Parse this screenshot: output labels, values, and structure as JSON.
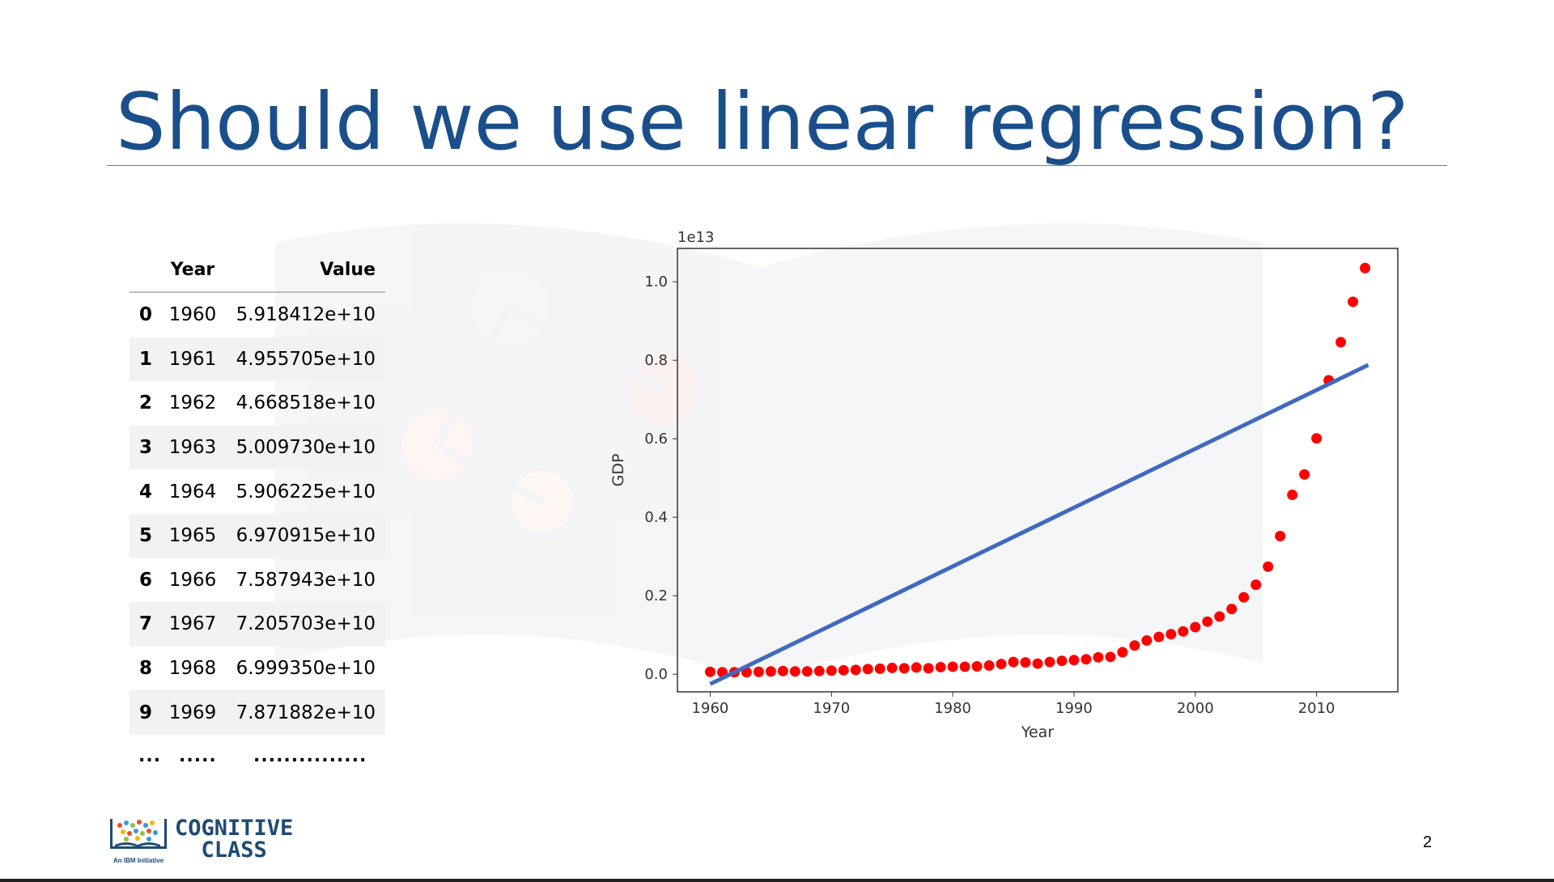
{
  "slide": {
    "title": "Should we use linear regression?",
    "page_number": "2"
  },
  "table": {
    "columns": [
      "",
      "Year",
      "Value"
    ],
    "rows": [
      {
        "index": "0",
        "year": "1960",
        "value": "5.918412e+10"
      },
      {
        "index": "1",
        "year": "1961",
        "value": "4.955705e+10"
      },
      {
        "index": "2",
        "year": "1962",
        "value": "4.668518e+10"
      },
      {
        "index": "3",
        "year": "1963",
        "value": "5.009730e+10"
      },
      {
        "index": "4",
        "year": "1964",
        "value": "5.906225e+10"
      },
      {
        "index": "5",
        "year": "1965",
        "value": "6.970915e+10"
      },
      {
        "index": "6",
        "year": "1966",
        "value": "7.587943e+10"
      },
      {
        "index": "7",
        "year": "1967",
        "value": "7.205703e+10"
      },
      {
        "index": "8",
        "year": "1968",
        "value": "6.999350e+10"
      },
      {
        "index": "9",
        "year": "1969",
        "value": "7.871882e+10"
      }
    ],
    "ellipsis": [
      "...",
      ".....",
      "..............."
    ]
  },
  "logo": {
    "line1": "COGNITIVE",
    "line2": "CLASS",
    "tagline": "An IBM Initiative"
  },
  "chart_data": {
    "type": "scatter",
    "xlabel": "Year",
    "ylabel": "GDP",
    "offset_label": "1e13",
    "xlim": [
      1957.3,
      2016.7
    ],
    "ylim": [
      -0.045,
      1.085
    ],
    "xticks": [
      1960,
      1970,
      1980,
      1990,
      2000,
      2010
    ],
    "yticks": [
      0.0,
      0.2,
      0.4,
      0.6,
      0.8,
      1.0
    ],
    "ytick_labels": [
      "0.0",
      "0.2",
      "0.4",
      "0.6",
      "0.8",
      "1.0"
    ],
    "grid": false,
    "colors": {
      "points": "#ff0000",
      "line": "#4169c0"
    },
    "series": [
      {
        "kind": "scatter",
        "x": [
          1960,
          1961,
          1962,
          1963,
          1964,
          1965,
          1966,
          1967,
          1968,
          1969,
          1970,
          1971,
          1972,
          1973,
          1974,
          1975,
          1976,
          1977,
          1978,
          1979,
          1980,
          1981,
          1982,
          1983,
          1984,
          1985,
          1986,
          1987,
          1988,
          1989,
          1990,
          1991,
          1992,
          1993,
          1994,
          1995,
          1996,
          1997,
          1998,
          1999,
          2000,
          2001,
          2002,
          2003,
          2004,
          2005,
          2006,
          2007,
          2008,
          2009,
          2010,
          2011,
          2012,
          2013,
          2014
        ],
        "y": [
          0.006,
          0.005,
          0.005,
          0.005,
          0.006,
          0.007,
          0.008,
          0.007,
          0.007,
          0.008,
          0.009,
          0.01,
          0.011,
          0.013,
          0.014,
          0.016,
          0.015,
          0.017,
          0.015,
          0.018,
          0.019,
          0.019,
          0.02,
          0.022,
          0.026,
          0.031,
          0.03,
          0.027,
          0.031,
          0.034,
          0.036,
          0.038,
          0.043,
          0.044,
          0.056,
          0.073,
          0.086,
          0.095,
          0.102,
          0.109,
          0.12,
          0.134,
          0.147,
          0.166,
          0.196,
          0.228,
          0.274,
          0.352,
          0.457,
          0.509,
          0.601,
          0.749,
          0.846,
          0.949,
          1.035
        ]
      },
      {
        "kind": "line",
        "x": [
          1960,
          2014
        ],
        "y": [
          -0.025,
          0.785
        ]
      }
    ]
  }
}
